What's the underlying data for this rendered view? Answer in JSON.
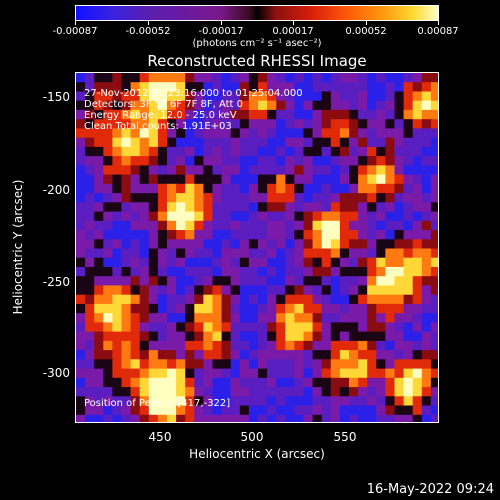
{
  "colorbar": {
    "tick_labels": [
      "-0.00087",
      "-0.00052",
      "-0.00017",
      "0.00017",
      "0.00052",
      "0.00087"
    ],
    "units": "(photons cm⁻² s⁻¹ asec⁻²)",
    "colors": [
      "#1010ff",
      "#6a1aa0",
      "#000000",
      "#d81e0a",
      "#ff9a10",
      "#ffffc8"
    ]
  },
  "title": "Reconstructed RHESSI Image",
  "annotation": {
    "time": "27-Nov-2012 01:23:16.000 to 01:25:04.000",
    "detectors": "Detectors: 3F 5F 6F 7F 8F, Att 0",
    "energy": "Energy Range: 12.0 - 25.0 keV",
    "clean": "Clean    Total counts: 1.91E+03",
    "peak": "Position of Peak = [417,-322]"
  },
  "axes": {
    "xlabel": "Heliocentric X (arcsec)",
    "ylabel": "Heliocentric Y (arcsec)",
    "xticks": [
      "450",
      "500",
      "550"
    ],
    "yticks": [
      "-150",
      "-200",
      "-250",
      "-300"
    ]
  },
  "timestamp": "16-May-2022 09:24",
  "image_data": {
    "type": "heatmap",
    "colormap": [
      "#2a20e8",
      "#5a1ec0",
      "#7a1aa8",
      "#1a0514",
      "#8a0c10",
      "#e02a0a",
      "#ff7a10",
      "#ffd838",
      "#ffffc0"
    ],
    "grid_cols": 40,
    "grid_rows": 38
  }
}
